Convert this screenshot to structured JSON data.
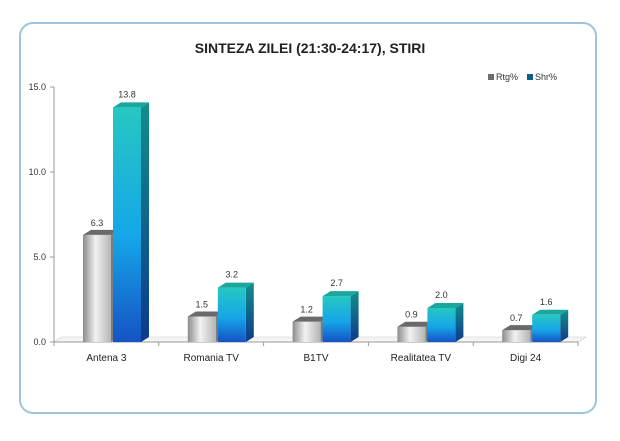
{
  "chart_data": {
    "type": "bar",
    "title": "SINTEZA ZILEI (21:30-24:17), STIRI",
    "categories": [
      "Antena 3",
      "Romania TV",
      "B1TV",
      "Realitatea TV",
      "Digi 24"
    ],
    "series": [
      {
        "name": "Rtg%",
        "values": [
          6.3,
          1.5,
          1.2,
          0.9,
          0.7
        ],
        "color": "#9a9a9a"
      },
      {
        "name": "Shr%",
        "values": [
          13.8,
          3.2,
          2.7,
          2.0,
          1.6
        ],
        "color": "#1a8fd8"
      }
    ],
    "value_labels": {
      "Rtg%": [
        "6.3",
        "1.5",
        "1.2",
        "0.9",
        "0.7"
      ],
      "Shr%": [
        "13.8",
        "3.2",
        "2.7",
        "2.0",
        "1.6"
      ]
    },
    "ylim": [
      0,
      15
    ],
    "yticks": [
      "0.0",
      "5.0",
      "10.0",
      "15.0"
    ],
    "grid": false,
    "legend_position": "top-right",
    "style": "3d-column"
  }
}
